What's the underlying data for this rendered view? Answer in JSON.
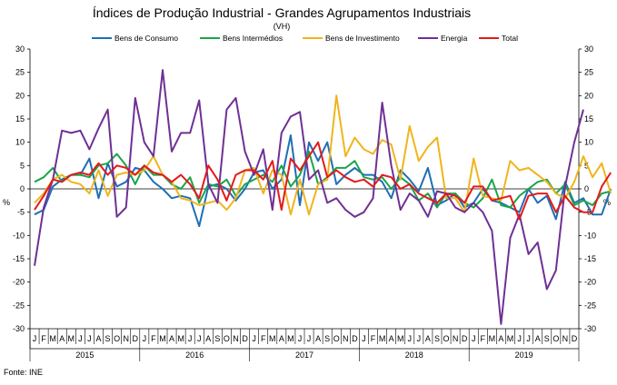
{
  "chart_data": {
    "type": "line",
    "title": "Índices de Produção Industrial - Grandes Agrupamentos Industriais",
    "subtitle": "(VH)",
    "ylabel_left": "%",
    "ylabel_right": "%",
    "source": "Fonte: INE",
    "ylim": [
      -30,
      30
    ],
    "yticks": [
      -30,
      -25,
      -20,
      -15,
      -10,
      -5,
      0,
      5,
      10,
      15,
      20,
      25,
      30
    ],
    "months": [
      "J",
      "F",
      "M",
      "A",
      "M",
      "J",
      "J",
      "A",
      "S",
      "O",
      "N",
      "D"
    ],
    "years": [
      "2015",
      "2016",
      "2017",
      "2018",
      "2019"
    ],
    "series": [
      {
        "name": "Bens de Consumo",
        "color": "#1f6fb4",
        "values": [
          -5.5,
          -4.5,
          0.5,
          2,
          3,
          3,
          6.5,
          -2,
          5.5,
          0.5,
          1.5,
          4.5,
          4,
          1.5,
          0,
          -2,
          -1.5,
          -2,
          -8,
          0.5,
          1,
          0,
          -2.5,
          0,
          3.5,
          4,
          0,
          2,
          11.5,
          -3.5,
          10,
          6,
          10,
          1,
          3,
          4.5,
          3,
          3,
          1.5,
          -2,
          4,
          2,
          -0.5,
          4.5,
          -3.5,
          -2.5,
          -1,
          -4,
          -3,
          0,
          -2.5,
          -3,
          -4,
          -5,
          0,
          -3,
          -1.5,
          -6.5,
          1.5,
          -3,
          -2,
          -5.5,
          -5.5,
          0
        ]
      },
      {
        "name": "Bens Intermédios",
        "color": "#1ca44a",
        "values": [
          1.5,
          2.5,
          4.5,
          1.5,
          3,
          3,
          2.5,
          5,
          5.5,
          7.5,
          5,
          1,
          5,
          3,
          3,
          1,
          0,
          2.5,
          -3,
          1,
          0.5,
          2,
          -1.5,
          1,
          2,
          3,
          1.5,
          5,
          0.5,
          3,
          8,
          1,
          2.5,
          4.5,
          4.5,
          6,
          2.5,
          2,
          2.5,
          0,
          2.5,
          1,
          -2.5,
          -1,
          -4,
          -1,
          -1,
          -3,
          -4,
          -2,
          2,
          -3.5,
          -4,
          -1.5,
          0,
          1.5,
          2,
          -1,
          1,
          -3.5,
          -2.5,
          -3.5,
          -1,
          -0.5
        ]
      },
      {
        "name": "Bens de Investimento",
        "color": "#efb51c",
        "values": [
          -3,
          -1,
          2,
          3,
          1.5,
          1,
          -1,
          4,
          -1.5,
          3,
          3.5,
          3,
          4,
          7,
          3,
          1.5,
          -2,
          -2.5,
          -3.5,
          -3,
          -2.5,
          -4.5,
          -2,
          4,
          4.5,
          -1,
          4,
          3,
          -5.5,
          2,
          -5.5,
          1,
          2,
          20,
          7,
          11,
          8.5,
          7.5,
          10.5,
          9.5,
          2,
          13.5,
          6,
          9,
          11,
          -2,
          -2,
          -5,
          6.5,
          -1.5,
          -2,
          -2.5,
          6,
          4,
          4.5,
          3,
          1.5,
          -1,
          -2,
          1.5,
          7,
          2.5,
          5.5,
          -1
        ]
      },
      {
        "name": "Energia",
        "color": "#6f3095",
        "values": [
          -16.5,
          -4,
          2,
          12.5,
          12,
          12.5,
          8.5,
          13,
          17,
          -6,
          -4,
          19.5,
          10,
          7,
          25.5,
          8,
          12,
          12,
          19,
          1,
          -3,
          17,
          19.5,
          8,
          3,
          8.5,
          -4.5,
          12,
          15.5,
          16.5,
          2,
          4,
          -3,
          -2,
          -4.5,
          -6,
          -5,
          -2,
          18.5,
          5,
          -4.5,
          -1,
          -2.5,
          -6,
          -0.5,
          -1,
          -4,
          -5,
          -3,
          -5,
          -9,
          -29,
          -10.5,
          -5.5,
          -14,
          -11.5,
          -21.5,
          -17.5,
          0.5,
          10,
          17
        ]
      },
      {
        "name": "Total",
        "color": "#e31a1c",
        "values": [
          -4.5,
          -1.5,
          2,
          1.5,
          3,
          3.5,
          3,
          5.5,
          3,
          5,
          4.5,
          3,
          5,
          3.5,
          3,
          1.5,
          3,
          1,
          -2,
          5,
          2,
          -2.5,
          3,
          4,
          4,
          2,
          6,
          -4.5,
          6.5,
          4,
          7,
          10,
          2.5,
          4,
          2.5,
          1.5,
          2,
          0.5,
          3,
          2.5,
          0,
          1,
          -1,
          -2,
          -3,
          -1,
          -1.5,
          -3,
          0.5,
          0.5,
          -2.5,
          -2,
          -1.5,
          -6.5,
          -1.5,
          -1,
          -1,
          -5,
          -1.5,
          -4,
          -5,
          -5,
          0.5,
          3.5
        ]
      }
    ]
  }
}
